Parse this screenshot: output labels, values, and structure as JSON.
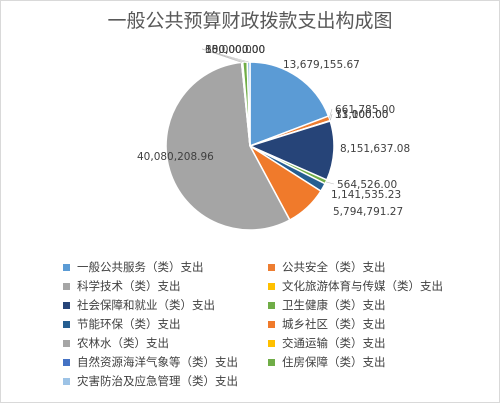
{
  "chart_data": {
    "type": "pie",
    "title": "一般公共预算财政拨款支出构成图",
    "legend_position": "bottom",
    "slices": [
      {
        "name": "一般公共服务（类）支出",
        "value": 13679155.67,
        "label": "13,679,155.67",
        "color": "#5b9bd5"
      },
      {
        "name": "公共安全（类）支出",
        "value": 661785.0,
        "label": "661,785.00",
        "color": "#ed7d31"
      },
      {
        "name": "科学技术（类）支出",
        "value": 11100.0,
        "label": "11,100.00",
        "color": "#a5a5a5"
      },
      {
        "name": "文化旅游体育与传媒（类）支出",
        "value": 33000.0,
        "label": "33,000.00",
        "color": "#ffc000"
      },
      {
        "name": "社会保障和就业（类）支出",
        "value": 8151637.08,
        "label": "8,151,637.08",
        "color": "#264478"
      },
      {
        "name": "卫生健康（类）支出",
        "value": 564526.0,
        "label": "564,526.00",
        "color": "#70ad47"
      },
      {
        "name": "节能环保（类）支出",
        "value": 1141535.23,
        "label": "1,141,535.23",
        "color": "#255e91"
      },
      {
        "name": "城乡社区（类）支出",
        "value": 5794791.27,
        "label": "5,794,791.27",
        "color": "#f07a2b"
      },
      {
        "name": "农林水（类）支出",
        "value": 40080208.96,
        "label": "40,080,208.96",
        "color": "#a5a5a5"
      },
      {
        "name": "交通运输（类）支出",
        "value": 10000.0,
        "label": "10,000.00",
        "color": "#ffc000"
      },
      {
        "name": "自然资源海洋气象等（类）支出",
        "value": 150000.0,
        "label": "150,000.00",
        "color": "#4472c4"
      },
      {
        "name": "住房保障（类）支出",
        "value": 600000.0,
        "label": "600,000.00",
        "color": "#70ad47"
      },
      {
        "name": "灾害防治及应急管理（类）支出",
        "value": 380000.0,
        "label": "380,000.00",
        "color": "#9dc3e6"
      }
    ]
  }
}
